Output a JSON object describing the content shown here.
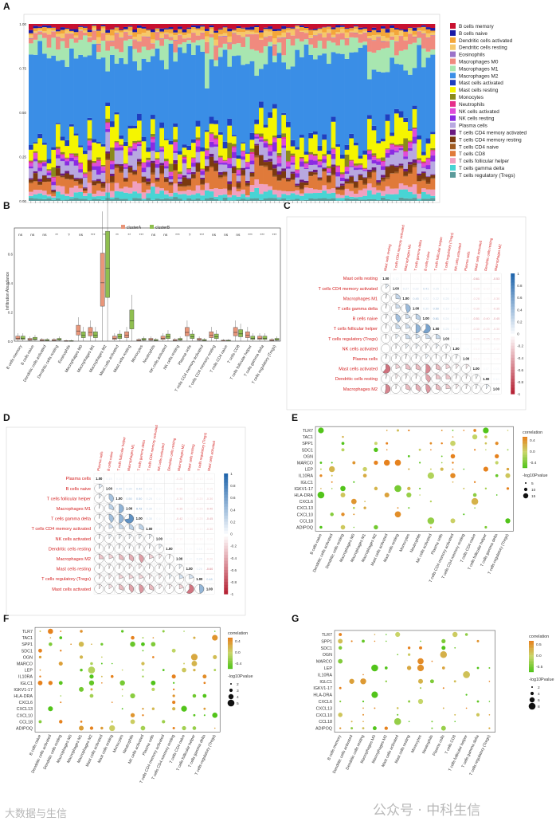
{
  "panel_labels": [
    "A",
    "B",
    "C",
    "D",
    "E",
    "F",
    "G"
  ],
  "cell_types": [
    "B cells memory",
    "B cells naive",
    "Dendritic cells activated",
    "Dendritic cells resting",
    "Eosinophils",
    "Macrophages M0",
    "Macrophages M1",
    "Macrophages M2",
    "Mast cells activated",
    "Mast cells resting",
    "Monocytes",
    "Neutrophils",
    "NK cells activated",
    "NK cells resting",
    "Plasma cells",
    "T cells CD4 memory activated",
    "T cells CD4 memory resting",
    "T cells CD4 naive",
    "T cells CD8",
    "T cells follicular helper",
    "T cells gamma delta",
    "T cells regulatory (Tregs)"
  ],
  "colors": {
    "B cells memory": "#c8102e",
    "B cells naive": "#1a1aa6",
    "Dendritic cells activated": "#f4a63a",
    "Dendritic cells resting": "#f6c86a",
    "Eosinophils": "#9b72c8",
    "Macrophages M0": "#f08a7e",
    "Macrophages M1": "#a8e6b0",
    "Macrophages M2": "#3a8ee6",
    "Mast cells activated": "#1f3fbf",
    "Mast cells resting": "#f5f500",
    "Monocytes": "#8a8a1a",
    "Neutrophils": "#e62e8a",
    "NK cells activated": "#e04bd8",
    "NK cells resting": "#8a2be2",
    "Plasma cells": "#b8a8e0",
    "T cells CD4 memory activated": "#6a1a80",
    "T cells CD4 memory resting": "#7a3a10",
    "T cells CD4 naive": "#a05a20",
    "T cells CD8": "#e07a3a",
    "T cells follicular helper": "#f0a0c0",
    "T cells gamma delta": "#48d4d4",
    "T cells regulatory (Tregs)": "#5a9a9a",
    "clusterA": "#e9967a",
    "clusterB": "#8fbf4f",
    "pos": "#2166ac",
    "neg": "#b2182b",
    "dot_hi": "#e6821e",
    "dot_lo": "#52c41a"
  },
  "chart_data": [
    {
      "panel": "A",
      "type": "bar",
      "stacked": true,
      "yticks": [
        "0.00",
        "0.25",
        "0.50",
        "0.75",
        "1.00"
      ],
      "ylim": [
        0,
        1
      ],
      "legend_position": "right",
      "n_samples": 90
    },
    {
      "panel": "B",
      "type": "box",
      "ylabel": "Infiltration Abundance",
      "yticks": [
        "0.0",
        "0.2",
        "0.4",
        "0.6"
      ],
      "ylim": [
        0,
        0.7
      ],
      "legend": [
        "clusterA",
        "clusterB"
      ],
      "significance": [
        "ns",
        "ns",
        "ns",
        "**",
        "?",
        "ns",
        "***",
        "***",
        "**",
        "**",
        "***",
        "ns",
        "ns",
        "***",
        "?",
        "***",
        "ns",
        "ns",
        "ns",
        "***",
        "***",
        "***"
      ],
      "medians_A": [
        0.02,
        0.01,
        0.005,
        0.005,
        0.0,
        0.07,
        0.06,
        0.4,
        0.02,
        0.04,
        0.005,
        0.01,
        0.02,
        0.005,
        0.06,
        0.01,
        0.04,
        0.002,
        0.06,
        0.04,
        0.02,
        0.005
      ],
      "medians_B": [
        0.02,
        0.015,
        0.005,
        0.01,
        0.0,
        0.04,
        0.04,
        0.5,
        0.03,
        0.14,
        0.01,
        0.005,
        0.03,
        0.01,
        0.03,
        0.005,
        0.03,
        0.002,
        0.05,
        0.02,
        0.02,
        0.01
      ]
    },
    {
      "panel": "C",
      "type": "heatmap",
      "rows": [
        "Mast cells resting",
        "T cells CD4 memory activated",
        "Macrophages M1",
        "T cells gamma delta",
        "B cells naive",
        "T cells follicular helper",
        "T cells regulatory (Tregs)",
        "NK cells activated",
        "Plasma cells",
        "Mast cells activated",
        "Dendritic cells resting",
        "Macrophages M2"
      ],
      "colorbar": [
        "1",
        "0.8",
        "0.6",
        "0.4",
        "0.2",
        "0",
        "-0.2",
        "-0.4",
        "-0.6",
        "-0.8",
        "-1"
      ],
      "values": [
        [
          1,
          0.12,
          0.05,
          0.04,
          0.06,
          0.03,
          0.02,
          0.01,
          0.05,
          -0.61,
          -0.05,
          -0.53
        ],
        [
          0.12,
          1,
          0.27,
          0.22,
          0.41,
          0.25,
          0.12,
          0.05,
          0.05,
          -0.2,
          -0.1,
          -0.05
        ],
        [
          0.05,
          0.27,
          1,
          0.45,
          0.22,
          0.22,
          0.25,
          0.1,
          0.03,
          -0.28,
          -0.05,
          -0.3
        ],
        [
          0.04,
          0.22,
          0.45,
          1,
          0.3,
          0.5,
          0.19,
          0.1,
          0.06,
          -0.3,
          -0.05,
          -0.35
        ],
        [
          0.06,
          0.41,
          0.22,
          0.3,
          1,
          0.61,
          0.24,
          0.05,
          0.1,
          -0.51,
          -0.4,
          -0.45
        ],
        [
          0.03,
          0.25,
          0.22,
          0.5,
          0.61,
          1,
          0.25,
          0.1,
          0.02,
          -0.3,
          -0.25,
          -0.3
        ],
        [
          0.02,
          0.12,
          0.25,
          0.19,
          0.24,
          0.25,
          1,
          0.05,
          0.02,
          -0.2,
          -0.25,
          -0.23
        ],
        [
          0.01,
          0.05,
          0.1,
          0.1,
          0.05,
          0.1,
          0.05,
          1,
          0.06,
          -0.1,
          -0.05,
          -0.1
        ],
        [
          0.05,
          0.05,
          0.03,
          0.06,
          0.1,
          0.02,
          0.02,
          0.06,
          1,
          -0.1,
          -0.05,
          -0.05
        ],
        [
          -0.61,
          -0.2,
          -0.28,
          -0.3,
          -0.51,
          -0.3,
          -0.2,
          -0.1,
          -0.1,
          1,
          0.07,
          0.05
        ],
        [
          -0.05,
          -0.1,
          -0.05,
          -0.05,
          -0.4,
          -0.25,
          -0.25,
          -0.05,
          -0.05,
          0.07,
          1,
          0.1
        ],
        [
          -0.53,
          -0.05,
          -0.3,
          -0.35,
          -0.45,
          -0.3,
          -0.23,
          -0.1,
          -0.05,
          0.05,
          0.1,
          1
        ]
      ]
    },
    {
      "panel": "D",
      "type": "heatmap",
      "rows": [
        "Plasma cells",
        "B cells naive",
        "T cells follicular helper",
        "Macrophages M1",
        "T cells gamma delta",
        "T cells CD4 memory activated",
        "NK cells activated",
        "Dendritic cells resting",
        "Macrophages M2",
        "Mast cells resting",
        "T cells regulatory (Tregs)",
        "Mast cells activated"
      ],
      "colorbar": [
        "1",
        "0.8",
        "0.6",
        "0.4",
        "0.2",
        "0",
        "-0.2",
        "-0.4",
        "-0.6",
        "-0.8",
        "-1"
      ],
      "values": [
        [
          1,
          0.15,
          0.1,
          0.05,
          0.05,
          0.1,
          0.05,
          0.03,
          -0.25,
          -0.05,
          -0.1,
          -0.1
        ],
        [
          0.15,
          1,
          0.4,
          0.3,
          0.42,
          0.2,
          0.1,
          0.05,
          -0.2,
          -0.05,
          -0.1,
          -0.15
        ],
        [
          0.1,
          0.4,
          1,
          0.5,
          0.5,
          0.25,
          0.1,
          0.05,
          -0.3,
          -0.05,
          -0.2,
          -0.3
        ],
        [
          0.05,
          0.3,
          0.5,
          1,
          0.72,
          0.3,
          0.1,
          0.05,
          -0.35,
          -0.1,
          -0.2,
          -0.4
        ],
        [
          0.05,
          0.42,
          0.5,
          0.72,
          1,
          0.3,
          0.1,
          0.05,
          -0.42,
          -0.1,
          -0.2,
          -0.45
        ],
        [
          0.1,
          0.2,
          0.25,
          0.3,
          0.3,
          1,
          0.1,
          0.05,
          -0.2,
          -0.05,
          -0.1,
          -0.3
        ],
        [
          0.05,
          0.1,
          0.1,
          0.1,
          0.1,
          0.1,
          1,
          0.1,
          -0.1,
          -0.05,
          -0.1,
          -0.1
        ],
        [
          0.03,
          0.05,
          0.05,
          0.05,
          0.05,
          0.05,
          0.1,
          1,
          -0.05,
          0.05,
          0.1,
          -0.1
        ],
        [
          -0.25,
          -0.2,
          -0.3,
          -0.35,
          -0.42,
          -0.2,
          -0.1,
          -0.05,
          1,
          0.1,
          0.2,
          -0.2
        ],
        [
          -0.05,
          -0.05,
          -0.05,
          -0.1,
          -0.1,
          -0.05,
          -0.05,
          0.05,
          0.1,
          1,
          0.2,
          -0.6
        ],
        [
          -0.1,
          -0.1,
          -0.2,
          -0.2,
          -0.2,
          -0.1,
          -0.1,
          0.1,
          0.2,
          0.2,
          1,
          0.48
        ],
        [
          -0.1,
          -0.15,
          -0.3,
          -0.4,
          -0.45,
          -0.3,
          -0.1,
          -0.1,
          -0.2,
          -0.6,
          0.48,
          1
        ]
      ]
    },
    {
      "panel": "E",
      "type": "scatter",
      "genes": [
        "TLR7",
        "TAC1",
        "SPP1",
        "SDC1",
        "OGN",
        "MARCO",
        "LEP",
        "IL10RA",
        "IGLC1",
        "IGKV1-17",
        "HLA-DRA",
        "CXCL6",
        "CXCL13",
        "CXCL10",
        "CCL18",
        "ADIPOQ"
      ],
      "cells": [
        "B cells naive",
        "Dendritic cells activated",
        "Dendritic cells resting",
        "Macrophages M0",
        "Macrophages M1",
        "Macrophages M2",
        "Mast cells activated",
        "Mast cells resting",
        "Monocytes",
        "Neutrophils",
        "NK cells activated",
        "Plasma cells",
        "T cells CD4 memory activated",
        "T cells CD4 memory resting",
        "T cells CD4 naive",
        "T cells follicular helper",
        "T cells gamma delta",
        "T cells regulatory (Tregs)"
      ],
      "legend_title": "correlation",
      "legend_ticks": [
        "0.4",
        "0.0",
        "-0.4"
      ],
      "size_title": "-log10Pvalue",
      "size_ticks": [
        "5",
        "10",
        "15"
      ]
    },
    {
      "panel": "F",
      "type": "scatter",
      "genes": [
        "TLR7",
        "TAC1",
        "SPP1",
        "SDC1",
        "OGN",
        "MARCO",
        "LEP",
        "IL10RA",
        "IGLC1",
        "IGKV1-17",
        "HLA-DRA",
        "CXCL6",
        "CXCL13",
        "CXCL10",
        "CCL18",
        "ADIPOQ"
      ],
      "cells": [
        "B cells naive",
        "Dendritic cells activated",
        "Dendritic cells resting",
        "Macrophages M0",
        "Macrophages M1",
        "Macrophages M2",
        "Mast cells activated",
        "Mast cells resting",
        "Monocytes",
        "Neutrophils",
        "NK cells activated",
        "Plasma cells",
        "T cells CD4 memory activated",
        "T cells CD4 memory resting",
        "T cells CD4 naive",
        "T cells follicular helper",
        "T cells gamma delta",
        "T cells regulatory (Tregs)"
      ],
      "legend_title": "correlation",
      "legend_ticks": [
        "0.4",
        "0.0",
        "-0.4"
      ],
      "size_title": "-log10Pvalue",
      "size_ticks": [
        "2",
        "3",
        "4",
        "5"
      ]
    },
    {
      "panel": "G",
      "type": "scatter",
      "genes": [
        "TLR7",
        "SPP1",
        "SDC1",
        "OGN",
        "MARCO",
        "LEP",
        "IL10RA",
        "IGLC1",
        "IGKV1-17",
        "HLA-DRA",
        "CXCL6",
        "CXCL13",
        "CXCL10",
        "CCL18",
        "ADIPOQ"
      ],
      "cells": [
        "B cells memory",
        "Dendritic cells activated",
        "Dendritic cells resting",
        "Macrophages M0",
        "Macrophages M2",
        "Mast cells activated",
        "Mast cells resting",
        "Monocytes",
        "Neutrophils",
        "Plasma cells",
        "T cells CD8",
        "T cells follicular helper",
        "T cells gamma delta",
        "T cells regulatory (Tregs)"
      ],
      "legend_title": "correlation",
      "legend_ticks": [
        "0.5",
        "0.0",
        "-0.5"
      ],
      "size_title": "-log10Pvalue",
      "size_ticks": [
        "2",
        "4",
        "6",
        "8"
      ]
    }
  ],
  "watermarks": {
    "bottom_right": "公众号 · 中科生信",
    "bottom_left": "大数据与生信"
  }
}
